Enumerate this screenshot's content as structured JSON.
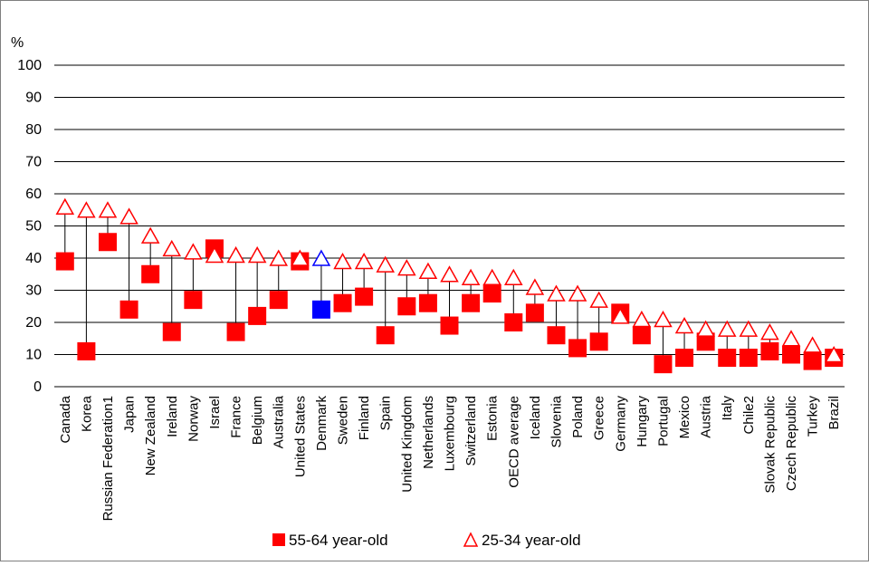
{
  "chart_data": {
    "type": "scatter",
    "ylabel": "%",
    "ylim": [
      0,
      100
    ],
    "yticks": [
      0,
      10,
      20,
      30,
      40,
      50,
      60,
      70,
      80,
      90,
      100
    ],
    "grid": true,
    "legend_position": "bottom",
    "categories": [
      "Canada",
      "Korea",
      "Russian Federation1",
      "Japan",
      "New Zealand",
      "Ireland",
      "Norway",
      "Israel",
      "France",
      "Belgium",
      "Australia",
      "United States",
      "Denmark",
      "Sweden",
      "Finland",
      "Spain",
      "United Kingdom",
      "Netherlands",
      "Luxembourg",
      "Switzerland",
      "Estonia",
      "OECD average",
      "Iceland",
      "Slovenia",
      "Poland",
      "Greece",
      "Germany",
      "Hungary",
      "Portugal",
      "Mexico",
      "Austria",
      "Italy",
      "Chile2",
      "Slovak Republic",
      "Czech Republic",
      "Turkey",
      "Brazil"
    ],
    "highlight_category": "Denmark",
    "series": [
      {
        "name": "55-64 year-old",
        "marker": "square",
        "color": "#ff0000",
        "highlight_color": "#0000ff",
        "values": [
          39,
          11,
          45,
          24,
          35,
          17,
          27,
          43,
          17,
          22,
          27,
          39,
          24,
          26,
          28,
          16,
          25,
          26,
          19,
          26,
          29,
          20,
          23,
          16,
          12,
          14,
          23,
          16,
          7,
          9,
          14,
          9,
          9,
          11,
          10,
          8,
          9
        ]
      },
      {
        "name": "25-34 year-old",
        "marker": "open-triangle",
        "color": "#ff0000",
        "highlight_color": "#0000ff",
        "values": [
          56,
          55,
          55,
          53,
          47,
          43,
          42,
          41,
          41,
          41,
          40,
          40,
          40,
          39,
          39,
          38,
          37,
          36,
          35,
          34,
          34,
          34,
          31,
          29,
          29,
          27,
          22,
          21,
          21,
          19,
          18,
          18,
          18,
          17,
          15,
          13,
          10
        ]
      }
    ]
  }
}
